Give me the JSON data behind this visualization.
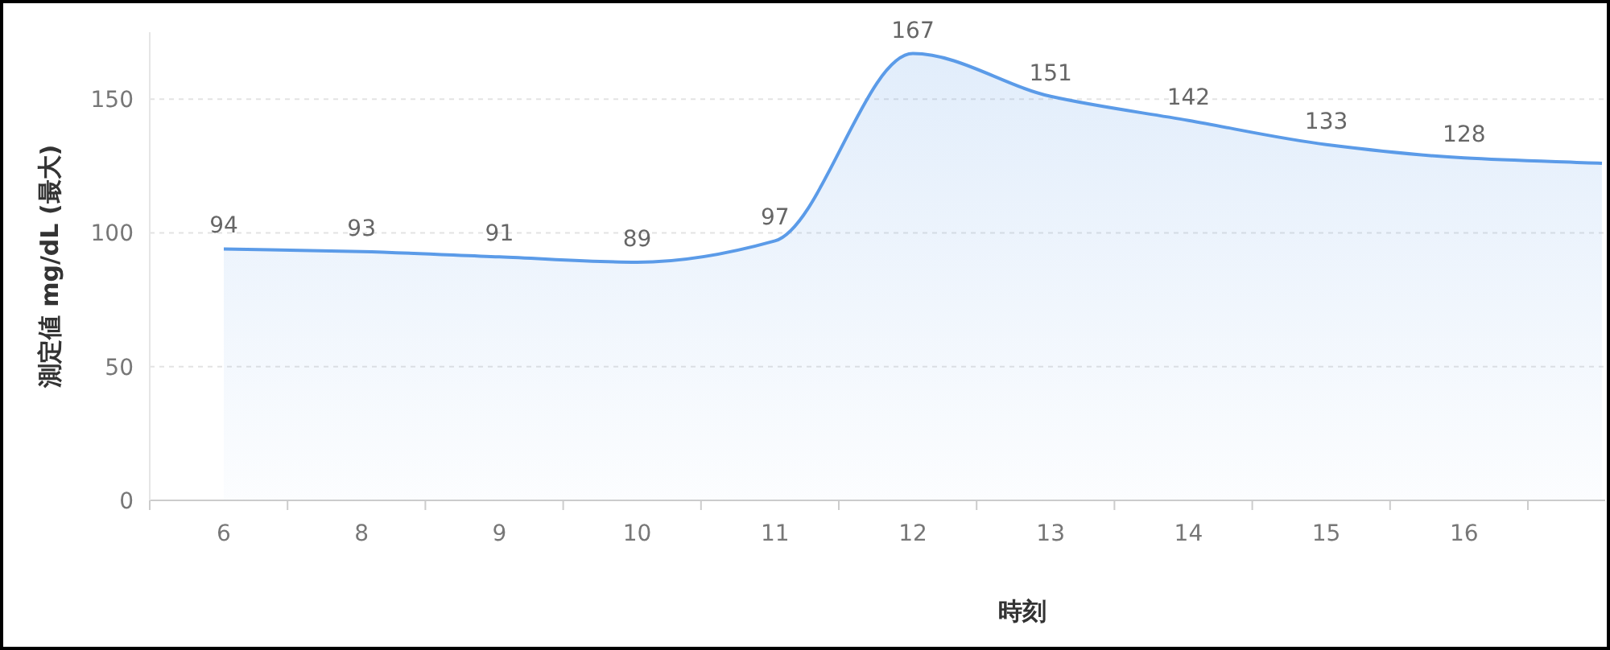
{
  "chart_data": {
    "type": "area",
    "xlabel": "時刻",
    "ylabel": "測定値 mg/dL (最大)",
    "categories": [
      "6",
      "8",
      "9",
      "10",
      "11",
      "12",
      "13",
      "14",
      "15",
      "16",
      null
    ],
    "values": [
      94,
      93,
      91,
      89,
      97,
      167,
      151,
      142,
      133,
      128,
      126
    ],
    "value_labels": [
      "94",
      "93",
      "91",
      "89",
      "97",
      "167",
      "151",
      "142",
      "133",
      "128",
      null
    ],
    "color": "#5b9be8",
    "ylim": [
      0,
      175
    ],
    "yticks": [
      0,
      50,
      100,
      150
    ],
    "grid": "y"
  }
}
